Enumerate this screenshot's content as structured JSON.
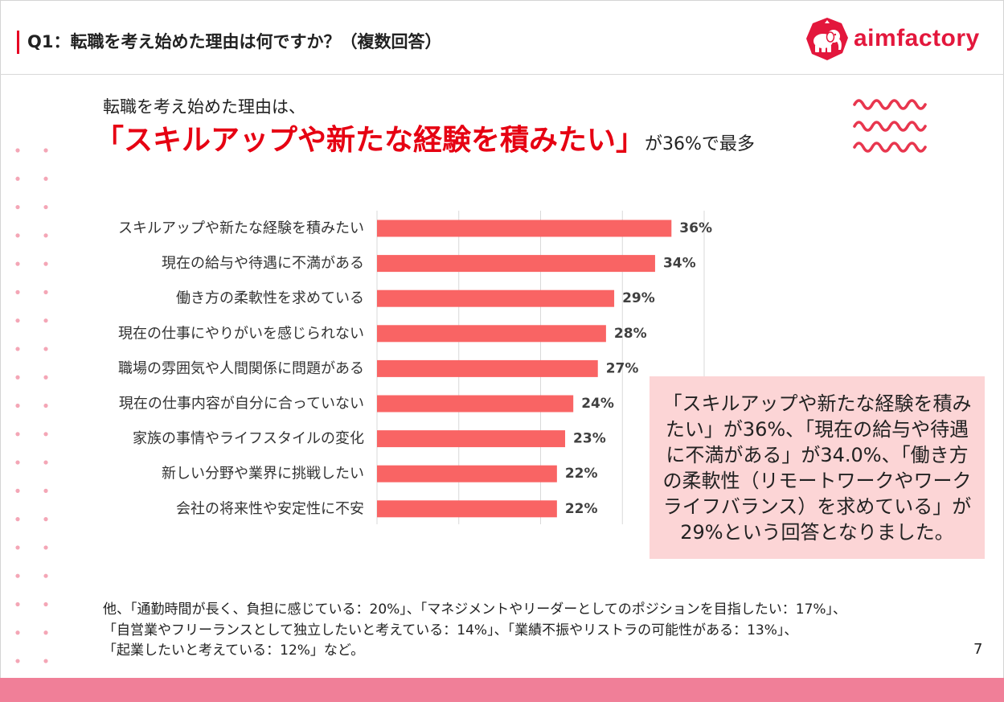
{
  "header": {
    "title": "Q1：転職を考え始めた理由は何ですか？（複数回答）",
    "accent_color": "#e60023"
  },
  "logo": {
    "wordmark": "aimfactory",
    "icon": "elephant-logo-icon",
    "color": "#e3173c"
  },
  "headline": {
    "intro": "転職を考え始めた理由は、",
    "highlight": "「スキルアップや新たな経験を積みたい」",
    "suffix": "が36%で最多",
    "highlight_color": "#e60012"
  },
  "chart_data": {
    "type": "bar",
    "orientation": "horizontal",
    "categories": [
      "スキルアップや新たな経験を積みたい",
      "現在の給与や待遇に不満がある",
      "働き方の柔軟性を求めている",
      "現在の仕事にやりがいを感じられない",
      "職場の雰囲気や人間関係に問題がある",
      "現在の仕事内容が自分に合っていない",
      "家族の事情やライフスタイルの変化",
      "新しい分野や業界に挑戦したい",
      "会社の将来性や安定性に不安"
    ],
    "values": [
      36,
      34,
      29,
      28,
      27,
      24,
      23,
      22,
      22
    ],
    "unit": "%",
    "xlim": [
      0,
      40
    ],
    "grid": true,
    "bar_color": "#f96464"
  },
  "summary_box": {
    "lines": [
      "「スキルアップや新たな経験を積み",
      "たい」が36%、「現在の給与や待遇",
      "に不満がある」が34.0%、「働き方",
      "の柔軟性（リモートワークやワーク",
      "ライフバランス）を求めている」が",
      "29%という回答となりました。"
    ],
    "background": "#fcd5d6"
  },
  "notes": {
    "lines": [
      "他、「通勤時間が長く、負担に感じている：20%」、「マネジメントやリーダーとしてのポジションを目指したい：17%」、",
      "「自営業やフリーランスとして独立したいと考えている：14%」、「業績不振やリストラの可能性がある：13%」、",
      "「起業したいと考えている：12%」など。"
    ]
  },
  "page_number": "7",
  "decorations": {
    "wave_icon": "wavy-lines-icon",
    "wave_color": "#e8364e",
    "dot_color": "#f4a6b6",
    "band_color": "#f07f98"
  }
}
